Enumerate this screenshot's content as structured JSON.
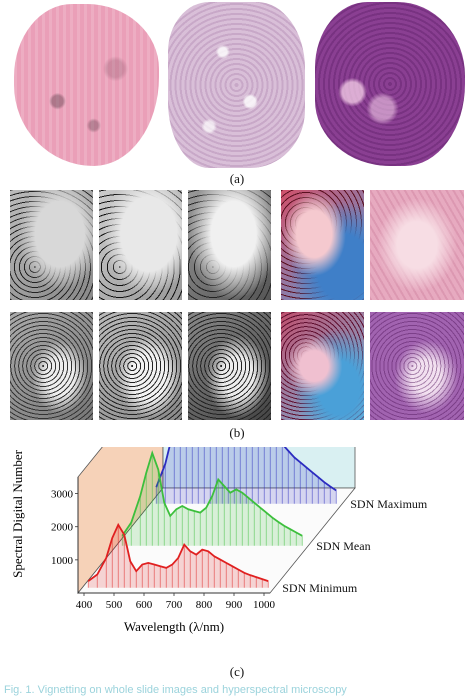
{
  "panel_a": {
    "label": "(a)",
    "slides": [
      {
        "name": "pink-tissue-slide",
        "color": "#ea9fb8"
      },
      {
        "name": "light-purple-tissue-slide",
        "color": "#d9bfd8"
      },
      {
        "name": "dark-purple-tissue-slide",
        "color": "#8a3f92"
      }
    ]
  },
  "panel_b": {
    "label": "(b)",
    "rows": [
      [
        "gray",
        "gray",
        "gray",
        "false-color",
        "he-pink"
      ],
      [
        "gray",
        "gray",
        "gray",
        "false-color",
        "he-purple"
      ]
    ]
  },
  "panel_c": {
    "label": "(c)"
  },
  "chart_data": {
    "type": "area",
    "xlabel": "Wavelength (λ/nm)",
    "ylabel": "Spectral Digital Number (SDN)",
    "x_ticks": [
      400,
      500,
      600,
      700,
      800,
      900,
      1000
    ],
    "y_ticks": [
      1000,
      2000,
      3000
    ],
    "xlim": [
      380,
      1020
    ],
    "ylim": [
      0,
      3500
    ],
    "series": [
      {
        "name": "SDN Minimum",
        "color": "#e02020",
        "x": [
          400,
          430,
          460,
          480,
          500,
          520,
          540,
          560,
          580,
          600,
          620,
          640,
          660,
          680,
          700,
          720,
          740,
          760,
          780,
          800,
          820,
          840,
          860,
          880,
          900,
          920,
          940,
          960,
          980,
          1000
        ],
        "y": [
          200,
          400,
          900,
          1500,
          1900,
          1600,
          800,
          500,
          700,
          750,
          700,
          650,
          600,
          700,
          900,
          1300,
          1100,
          1000,
          1150,
          1100,
          950,
          850,
          750,
          650,
          550,
          450,
          380,
          320,
          260,
          200
        ]
      },
      {
        "name": "SDN Mean",
        "color": "#3cbf3c",
        "x": [
          400,
          430,
          460,
          480,
          500,
          520,
          540,
          560,
          580,
          600,
          620,
          640,
          660,
          680,
          700,
          720,
          740,
          760,
          780,
          800,
          820,
          840,
          860,
          880,
          900,
          920,
          940,
          960,
          980,
          1000
        ],
        "y": [
          300,
          700,
          1500,
          2200,
          2800,
          2300,
          1300,
          900,
          1100,
          1200,
          1100,
          1050,
          1000,
          1150,
          1500,
          2000,
          1800,
          1600,
          1700,
          1600,
          1450,
          1300,
          1150,
          1000,
          850,
          720,
          600,
          500,
          400,
          300
        ]
      },
      {
        "name": "SDN Maximum",
        "color": "#2c2cc0",
        "x": [
          400,
          430,
          460,
          480,
          500,
          520,
          540,
          560,
          580,
          600,
          620,
          640,
          660,
          680,
          700,
          720,
          740,
          760,
          780,
          800,
          820,
          840,
          860,
          880,
          900,
          920,
          940,
          960,
          980,
          1000
        ],
        "y": [
          500,
          1200,
          2300,
          3100,
          3400,
          3200,
          2400,
          2000,
          2200,
          2250,
          2150,
          2050,
          1950,
          2100,
          2400,
          2300,
          2100,
          2000,
          2100,
          2000,
          1800,
          1600,
          1400,
          1250,
          1100,
          950,
          800,
          650,
          520,
          400
        ]
      }
    ]
  },
  "caption_text": "Fig. 1.   Vignetting on whole slide images and hyperspectral microscopy"
}
